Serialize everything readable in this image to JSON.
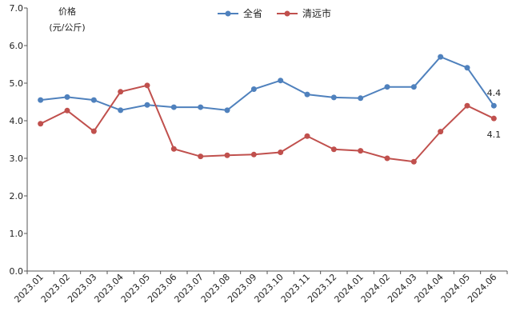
{
  "chart_data": {
    "type": "line",
    "ylabel_line1": "价格",
    "ylabel_line2": "(元/公斤)",
    "ylim": [
      0,
      7
    ],
    "y_ticks": [
      "0.0",
      "1.0",
      "2.0",
      "3.0",
      "4.0",
      "5.0",
      "6.0",
      "7.0"
    ],
    "categories": [
      "2023.01",
      "2023.02",
      "2023.03",
      "2023.04",
      "2023.05",
      "2023.06",
      "2023.07",
      "2023.08",
      "2023.09",
      "2023.10",
      "2023.11",
      "2023.12",
      "2024.01",
      "2024.02",
      "2024.03",
      "2024.04",
      "2024.05",
      "2024.06"
    ],
    "series": [
      {
        "name": "全省",
        "color": "#4f81bd",
        "values": [
          4.55,
          4.63,
          4.55,
          4.28,
          4.42,
          4.36,
          4.36,
          4.28,
          4.84,
          5.07,
          4.7,
          4.62,
          4.6,
          4.9,
          4.9,
          5.7,
          5.41,
          4.4
        ],
        "end_label": "4.4"
      },
      {
        "name": "清远市",
        "color": "#c0504d",
        "values": [
          3.92,
          4.27,
          3.72,
          4.77,
          4.94,
          3.25,
          3.05,
          3.08,
          3.1,
          3.16,
          3.59,
          3.24,
          3.2,
          3.0,
          2.91,
          3.71,
          4.4,
          4.06
        ],
        "end_label": "4.1"
      }
    ],
    "legend_position": "top-center",
    "grid": false
  }
}
